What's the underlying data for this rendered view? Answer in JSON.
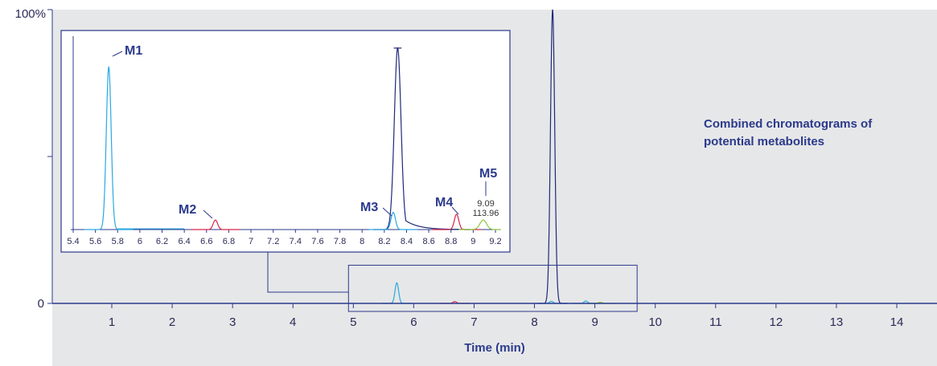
{
  "chart_data": [
    {
      "type": "line",
      "title": "",
      "xlabel": "Time (min)",
      "ylabel": "",
      "xlim": [
        0,
        14.5
      ],
      "ylim": [
        0,
        100
      ],
      "x_ticks": [
        "1",
        "2",
        "3",
        "4",
        "5",
        "6",
        "7",
        "8",
        "9",
        "10",
        "11",
        "12",
        "13",
        "14"
      ],
      "y_ticks": [
        "0",
        "100%"
      ],
      "annotation": "Combined chromatograms of potential metabolites",
      "colors": {
        "parent": "#1e2a78",
        "m1": "#29a9e0",
        "m2": "#d7254b",
        "m5": "#8dc63f",
        "background_band": "#e6e7e8",
        "axis": "#2b3a8c"
      },
      "series": [
        {
          "name": "",
          "color": "#1e2a78",
          "peaks": [
            {
              "rt": 8.3,
              "height": 100,
              "width": 0.035
            }
          ]
        },
        {
          "name": "",
          "color": "#29a9e0",
          "peaks": [
            {
              "rt": 5.72,
              "height": 7,
              "width": 0.03
            },
            {
              "rt": 8.28,
              "height": 0.7,
              "width": 0.03
            },
            {
              "rt": 8.85,
              "height": 0.8,
              "width": 0.03
            }
          ]
        },
        {
          "name": "",
          "color": "#d7254b",
          "peaks": [
            {
              "rt": 6.68,
              "height": 0.6,
              "width": 0.03
            }
          ]
        },
        {
          "name": "",
          "color": "#8dc63f",
          "peaks": [
            {
              "rt": 9.09,
              "height": 0.4,
              "width": 0.03
            }
          ]
        }
      ],
      "zoom_region": {
        "x": [
          4.92,
          9.7
        ],
        "y": [
          0,
          13
        ]
      }
    },
    {
      "type": "line",
      "title": "",
      "xlabel": "",
      "xlim": [
        5.4,
        9.25
      ],
      "ylim": [
        0,
        100
      ],
      "x_ticks": [
        "5.4",
        "5.6",
        "5.8",
        "6",
        "6.2",
        "6.4",
        "6.6",
        "6.8",
        "7",
        "7.2",
        "7.4",
        "7.6",
        "7.8",
        "8",
        "8.2",
        "8.4",
        "8.6",
        "8.8",
        "9",
        "9.2"
      ],
      "series": [
        {
          "name": "",
          "color": "#1e2a78",
          "peaks": [
            {
              "rt": 8.32,
              "height": 95,
              "width": 0.03,
              "tail": true
            }
          ]
        },
        {
          "name": "",
          "color": "#29a9e0",
          "peaks": [
            {
              "rt": 5.72,
              "height": 85,
              "width": 0.022
            },
            {
              "rt": 8.28,
              "height": 9,
              "width": 0.02
            }
          ]
        },
        {
          "name": "",
          "color": "#d7254b",
          "peaks": [
            {
              "rt": 6.68,
              "height": 5,
              "width": 0.02
            },
            {
              "rt": 8.85,
              "height": 8,
              "width": 0.02
            }
          ]
        },
        {
          "name": "",
          "color": "#8dc63f",
          "peaks": [
            {
              "rt": 9.09,
              "height": 5,
              "width": 0.03
            }
          ]
        }
      ],
      "peak_labels": [
        {
          "label": "M1",
          "rt": 5.72
        },
        {
          "label": "M2",
          "rt": 6.68
        },
        {
          "label": "M3",
          "rt": 8.28
        },
        {
          "label": "M4",
          "rt": 8.85
        },
        {
          "label": "M5",
          "rt": 9.09,
          "detail": [
            "9.09",
            "113.96"
          ]
        }
      ]
    }
  ]
}
